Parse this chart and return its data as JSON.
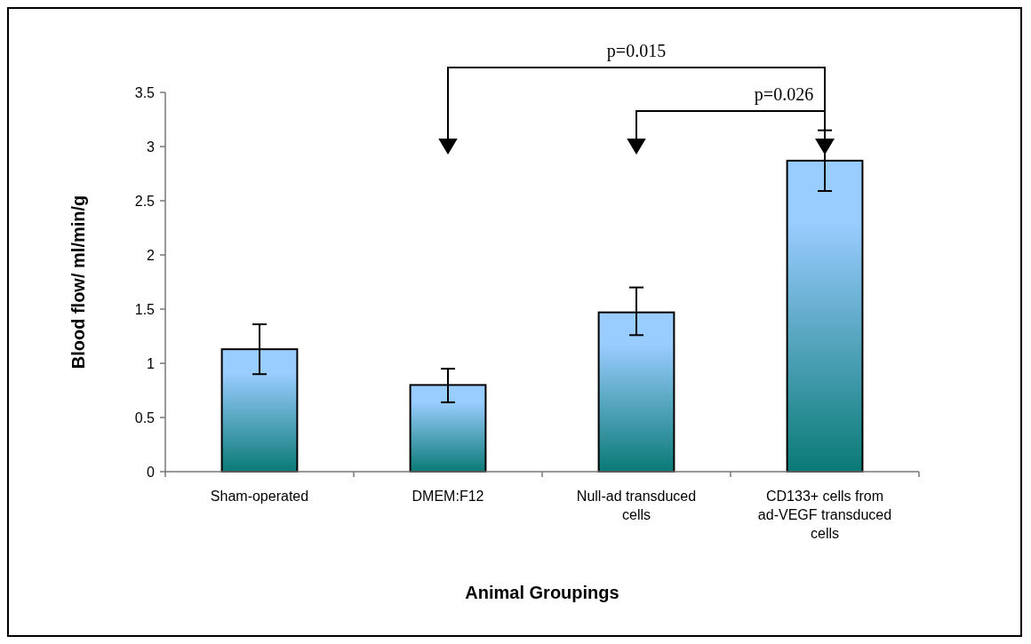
{
  "chart_data": {
    "type": "bar",
    "xlabel": "Animal Groupings",
    "ylabel": "Blood flow/ ml/min/g",
    "categories": [
      "Sham-operated",
      "DMEM:F12",
      "Null-ad transduced cells",
      "CD133+ cells from ad-VEGF transduced cells"
    ],
    "values": [
      1.13,
      0.8,
      1.47,
      2.87
    ],
    "errors": [
      [
        0.9,
        1.36
      ],
      [
        0.64,
        0.95
      ],
      [
        1.26,
        1.7
      ],
      [
        2.59,
        3.15
      ]
    ],
    "color": "#99ccff",
    "ylim": [
      0,
      3.5
    ],
    "yticks": [
      0,
      0.5,
      1,
      1.5,
      2,
      2.5,
      3,
      3.5
    ],
    "annotations": [
      "p=0.015",
      "p=0.026"
    ]
  }
}
